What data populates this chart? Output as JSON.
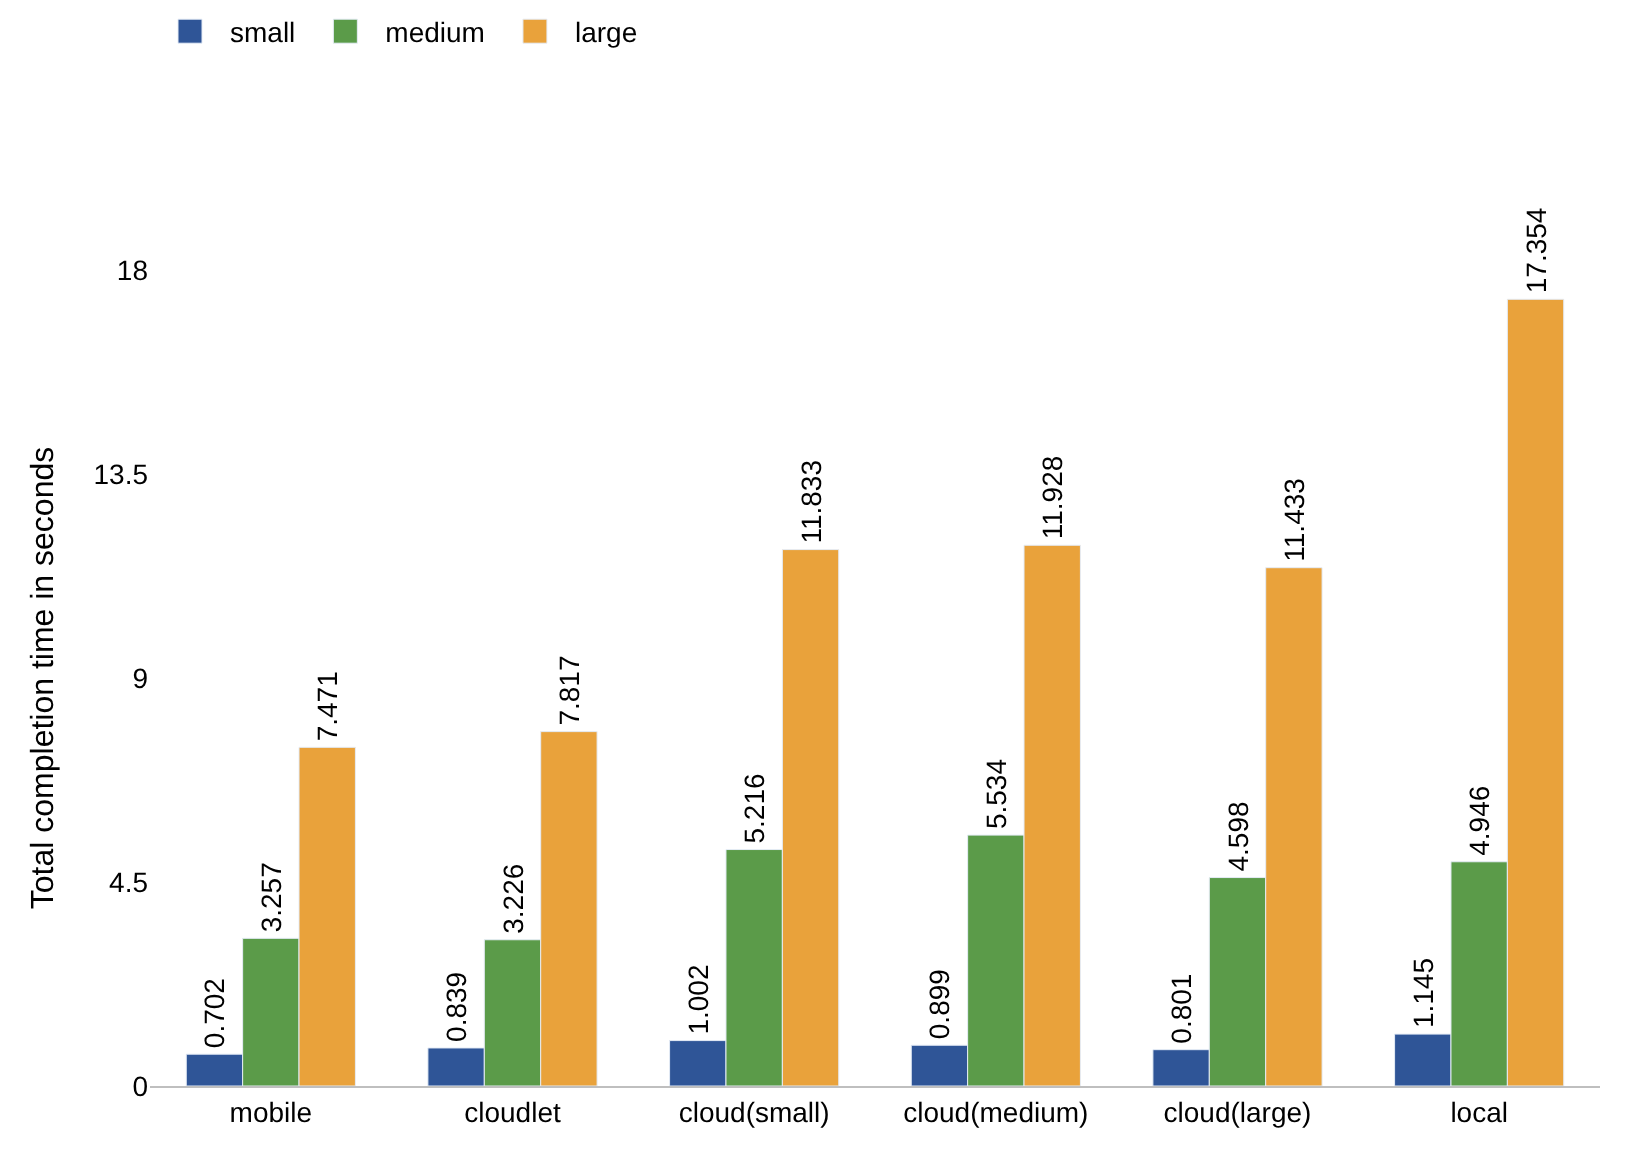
{
  "chart_data": {
    "type": "bar",
    "ylabel": "Total completion time in seconds",
    "categories": [
      "mobile",
      "cloudlet",
      "cloud(small)",
      "cloud(medium)",
      "cloud(large)",
      "local"
    ],
    "series": [
      {
        "name": "small",
        "color": "#2f5597",
        "values": [
          0.702,
          0.839,
          1.002,
          0.899,
          0.801,
          1.145
        ]
      },
      {
        "name": "medium",
        "color": "#5b9b49",
        "values": [
          3.257,
          3.226,
          5.216,
          5.534,
          4.598,
          4.946
        ]
      },
      {
        "name": "large",
        "color": "#e9a23b",
        "values": [
          7.471,
          7.817,
          11.833,
          11.928,
          11.433,
          17.354
        ]
      }
    ],
    "ylim": [
      0,
      18
    ],
    "yticks": [
      0,
      4.5,
      9,
      13.5,
      18
    ],
    "data_labels": true,
    "legend": "top left"
  }
}
